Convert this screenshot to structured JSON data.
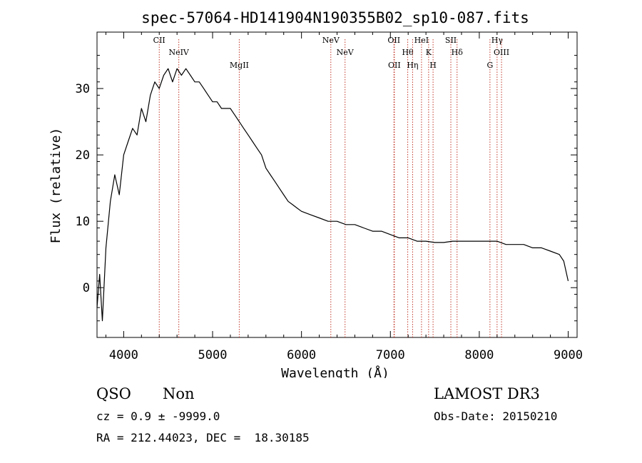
{
  "chart_data": {
    "type": "line",
    "title": "spec-57064-HD141904N190355B02_sp10-087.fits",
    "xlabel": "Wavelength (Å)",
    "ylabel": "Flux (relative)",
    "xlim": [
      3700,
      9100
    ],
    "ylim": [
      -7.5,
      38.5
    ],
    "xticks": [
      4000,
      5000,
      6000,
      7000,
      8000,
      9000
    ],
    "yticks": [
      0,
      10,
      20,
      30
    ],
    "grid": false,
    "series": [
      {
        "x": [
          3700,
          3730,
          3760,
          3800,
          3850,
          3900,
          3950,
          4000,
          4050,
          4100,
          4150,
          4200,
          4250,
          4300,
          4350,
          4400,
          4450,
          4500,
          4550,
          4600,
          4650,
          4700,
          4750,
          4800,
          4850,
          4900,
          4950,
          5000,
          5050,
          5100,
          5150,
          5200,
          5250,
          5300,
          5350,
          5400,
          5450,
          5500,
          5550,
          5600,
          5650,
          5700,
          5750,
          5800,
          5850,
          5900,
          5950,
          6000,
          6100,
          6200,
          6300,
          6400,
          6500,
          6600,
          6700,
          6800,
          6900,
          7000,
          7100,
          7200,
          7300,
          7400,
          7500,
          7600,
          7700,
          7800,
          7900,
          8000,
          8100,
          8200,
          8300,
          8400,
          8500,
          8600,
          8700,
          8800,
          8900,
          8950,
          9000
        ],
        "y": [
          -3,
          2,
          -5,
          6,
          13,
          17,
          14,
          20,
          22,
          24,
          23,
          27,
          25,
          29,
          31,
          30,
          32,
          33,
          31,
          33,
          32,
          33,
          32,
          31,
          31,
          30,
          29,
          28,
          28,
          27,
          27,
          27,
          26,
          25,
          24,
          23,
          22,
          21,
          20,
          18,
          17,
          16,
          15,
          14,
          13,
          12.5,
          12,
          11.5,
          11,
          10.5,
          10,
          10,
          9.5,
          9.5,
          9,
          8.5,
          8.5,
          8,
          7.5,
          7.5,
          7,
          7,
          6.8,
          6.8,
          7,
          7,
          7,
          7,
          7,
          7,
          6.5,
          6.5,
          6.5,
          6,
          6,
          5.5,
          5,
          4,
          1
        ]
      }
    ],
    "lines": [
      {
        "name": "CII",
        "x": 4400
      },
      {
        "name": "NeIV",
        "x": 4620
      },
      {
        "name": "MgII",
        "x": 5300
      },
      {
        "name": "NeV",
        "x": 6330
      },
      {
        "name": "NeV",
        "x": 6490
      },
      {
        "name": "OII",
        "x": 7045
      },
      {
        "name": "OII",
        "x": 7040
      },
      {
        "name": "Hθ",
        "x": 7195
      },
      {
        "name": "Hη",
        "x": 7250
      },
      {
        "name": "HeI",
        "x": 7350
      },
      {
        "name": "K",
        "x": 7430
      },
      {
        "name": "H",
        "x": 7480
      },
      {
        "name": "SII",
        "x": 7680
      },
      {
        "name": "Hδ",
        "x": 7750
      },
      {
        "name": "G",
        "x": 8120
      },
      {
        "name": "Hγ",
        "x": 8200
      },
      {
        "name": "OIII",
        "x": 8250
      }
    ]
  },
  "info": {
    "object_class": "QSO",
    "subclass": "Non",
    "survey": "LAMOST DR3",
    "redshift": "cz = 0.9 ± -9999.0",
    "obs_date": "Obs-Date: 20150210",
    "coords": "RA = 212.44023, DEC =  18.30185"
  }
}
